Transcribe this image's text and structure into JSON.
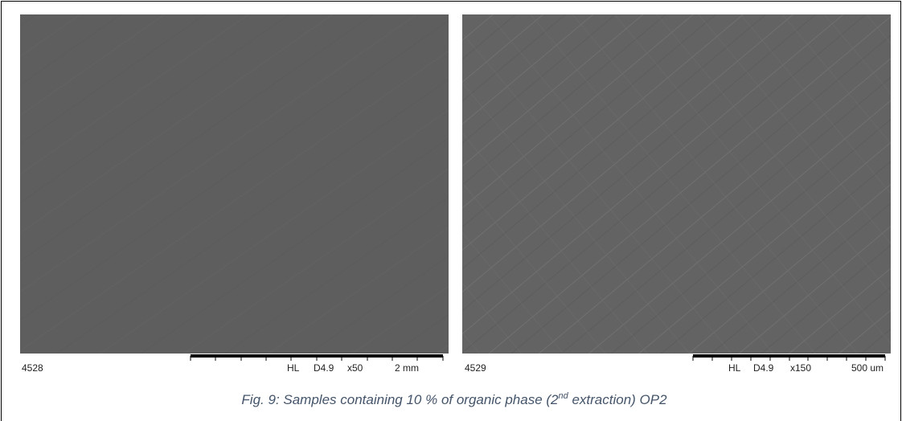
{
  "figure": {
    "panels": [
      {
        "id": "4528",
        "labels": [
          "HL",
          "D4.9",
          "x50",
          "2 mm"
        ]
      },
      {
        "id": "4529",
        "labels": [
          "HL",
          "D4.9",
          "x150",
          "500 um"
        ]
      }
    ],
    "caption": {
      "parts": [
        "Fig. 9: Samples containing 10 % of organic phase (2",
        "nd",
        " extraction) OP2"
      ]
    }
  }
}
